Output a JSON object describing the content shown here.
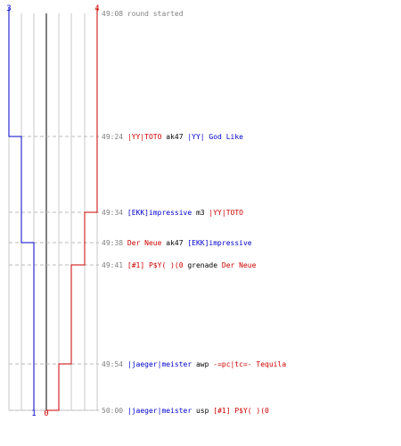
{
  "colors": {
    "blue": "#0000cc",
    "red": "#cc0000",
    "black": "#000000",
    "gray_text": "#808080",
    "grid": "#c8c8c8",
    "axis": "#808080",
    "dash": "#bbbbbb"
  },
  "scores": {
    "blue_start": "3",
    "red_start": "4",
    "blue_end": "1",
    "red_end": "0"
  },
  "events": [
    {
      "time": "49:08",
      "parts": [
        {
          "text": "round started",
          "team": "gray"
        }
      ],
      "blue": 3,
      "red": 4
    },
    {
      "time": "49:24",
      "parts": [
        {
          "text": "|YY|TOTO",
          "team": "red"
        },
        {
          "text": " ak47 ",
          "team": "black"
        },
        {
          "text": "|YY| God Like",
          "team": "blue"
        }
      ],
      "blue": 2,
      "red": 4
    },
    {
      "time": "49:34",
      "parts": [
        {
          "text": "[EKK]impressive",
          "team": "blue"
        },
        {
          "text": " m3 ",
          "team": "black"
        },
        {
          "text": "|YY|TOTO",
          "team": "red"
        }
      ],
      "blue": 2,
      "red": 3
    },
    {
      "time": "49:38",
      "parts": [
        {
          "text": "Der Neue",
          "team": "red"
        },
        {
          "text": " ak47 ",
          "team": "black"
        },
        {
          "text": "[EKK]impressive",
          "team": "blue"
        }
      ],
      "blue": 1,
      "red": 3
    },
    {
      "time": "49:41",
      "parts": [
        {
          "text": "[#1] P$Y( )(0",
          "team": "red"
        },
        {
          "text": " grenade ",
          "team": "black"
        },
        {
          "text": "Der Neue",
          "team": "red"
        }
      ],
      "blue": 1,
      "red": 2
    },
    {
      "time": "49:54",
      "parts": [
        {
          "text": "|jaeger|meister",
          "team": "blue"
        },
        {
          "text": " awp ",
          "team": "black"
        },
        {
          "text": "-=pc|tc=- Tequila",
          "team": "red"
        }
      ],
      "blue": 1,
      "red": 1
    },
    {
      "time": "50:00",
      "parts": [
        {
          "text": "|jaeger|meister",
          "team": "blue"
        },
        {
          "text": " usp ",
          "team": "black"
        },
        {
          "text": "[#1] P$Y( )(0",
          "team": "red"
        }
      ],
      "blue": 1,
      "red": 0
    }
  ]
}
